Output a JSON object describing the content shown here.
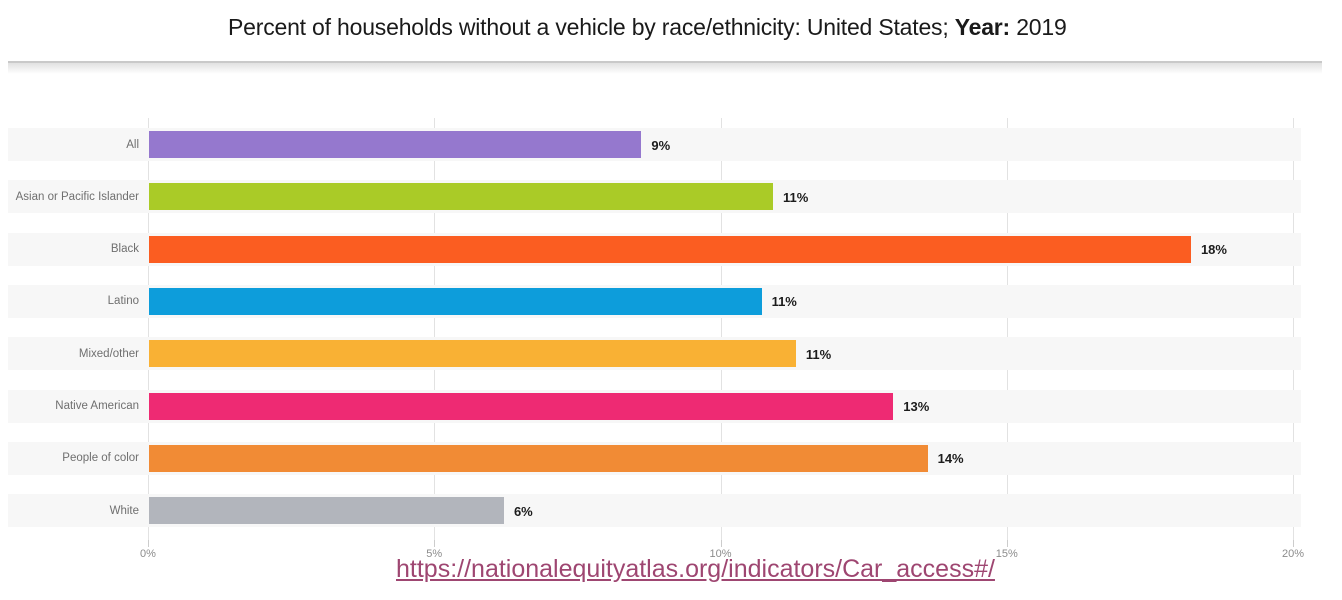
{
  "title": {
    "text_regular": "Percent of households without a vehicle by race/ethnicity:  United States; ",
    "text_bold": "Year:",
    "text_after": " 2019"
  },
  "source": {
    "url_text": "https://nationalequityatlas.org/indicators/Car_access#/"
  },
  "chart_data": {
    "type": "bar",
    "orientation": "horizontal",
    "title": "Percent of households without a vehicle by race/ethnicity: United States; Year: 2019",
    "categories": [
      "All",
      "Asian or Pacific Islander",
      "Black",
      "Latino",
      "Mixed/other",
      "Native American",
      "People of color",
      "White"
    ],
    "values": [
      9,
      11,
      18,
      11,
      11,
      13,
      14,
      6
    ],
    "value_labels": [
      "9%",
      "11%",
      "18%",
      "11%",
      "11%",
      "13%",
      "14%",
      "6%"
    ],
    "bar_lengths_pct": [
      8.6,
      10.9,
      18.2,
      10.7,
      11.3,
      13.0,
      13.6,
      6.2
    ],
    "bar_colors": [
      "#9578CE",
      "#AACB27",
      "#FB5D21",
      "#0D9DDB",
      "#F9B134",
      "#EE2A73",
      "#F18B35",
      "#B2B5BC"
    ],
    "x_tick_labels": [
      "0%",
      "5%",
      "10%",
      "15%",
      "20%"
    ],
    "x_tick_values": [
      0,
      5,
      10,
      15,
      20
    ],
    "xlim": [
      0,
      20
    ],
    "xlabel": "",
    "ylabel": "",
    "grid": "vertical-only",
    "legend": "none",
    "row_background_color": "#f7f7f7",
    "gridline_color": "#e2e2e2",
    "label_color": "#6f6f6f",
    "value_label_color": "#1c1c1c"
  }
}
